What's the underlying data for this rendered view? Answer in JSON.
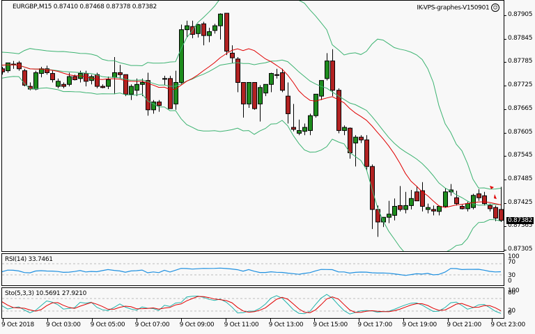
{
  "header": {
    "symbol_info": "EURGBP,M15  0.87410 0.87468 0.87378 0.87382",
    "expert_name": "IK-VPS-graphes-V150901",
    "expert_icon": "smiley-icon"
  },
  "price_axis": {
    "labels": [
      "0.87905",
      "0.87845",
      "0.87785",
      "0.87725",
      "0.87665",
      "0.87605",
      "0.87545",
      "0.87485",
      "0.87425",
      "0.87365",
      "0.87305"
    ],
    "current_price": "0.87382"
  },
  "rsi_panel": {
    "label": "RSI(14) 33.7461",
    "levels": [
      "100",
      "70",
      "30",
      "0"
    ]
  },
  "stoch_panel": {
    "label": "Sto(5,3,3) 10.5691 27.9210",
    "levels": [
      "100",
      "80",
      "20",
      "0"
    ]
  },
  "time_axis": {
    "labels": [
      "9 Oct 2018",
      "9 Oct 03:00",
      "9 Oct 05:00",
      "9 Oct 07:00",
      "9 Oct 09:00",
      "9 Oct 11:00",
      "9 Oct 13:00",
      "9 Oct 15:00",
      "9 Oct 17:00",
      "9 Oct 19:00",
      "9 Oct 21:00",
      "9 Oct 23:00"
    ]
  },
  "colors": {
    "bull": "#1e8c1e",
    "bear": "#b22222",
    "ma": "#e00000",
    "bands": "#3cb371",
    "rsi": "#1e90e0",
    "stoch_main": "#20b2aa",
    "stoch_signal": "#e00000",
    "background": "#f8f8f8"
  },
  "chart_data": {
    "type": "candlestick",
    "title": "EURGBP,M15",
    "ohlc_last": {
      "open": 0.8741,
      "high": 0.87468,
      "low": 0.87378,
      "close": 0.87382
    },
    "ylim": [
      0.8729,
      0.87945
    ],
    "x_labels": [
      "9 Oct 2018",
      "9 Oct 03:00",
      "9 Oct 05:00",
      "9 Oct 07:00",
      "9 Oct 09:00",
      "9 Oct 11:00",
      "9 Oct 13:00",
      "9 Oct 15:00",
      "9 Oct 17:00",
      "9 Oct 19:00",
      "9 Oct 21:00",
      "9 Oct 23:00"
    ],
    "candles": [
      [
        0.87775,
        0.8779,
        0.87765,
        0.8778
      ],
      [
        0.87785,
        0.8779,
        0.8776,
        0.87765
      ],
      [
        0.8777,
        0.8778,
        0.87765,
        0.87775
      ],
      [
        0.8777,
        0.87795,
        0.8776,
        0.8779
      ],
      [
        0.87795,
        0.8781,
        0.87785,
        0.87808
      ],
      [
        0.87808,
        0.87815,
        0.8777,
        0.87775
      ],
      [
        0.8777,
        0.87775,
        0.87755,
        0.87762
      ],
      [
        0.87765,
        0.87785,
        0.8776,
        0.87785
      ],
      [
        0.8778,
        0.8779,
        0.8777,
        0.87782
      ],
      [
        0.87785,
        0.8779,
        0.87765,
        0.8777
      ],
      [
        0.87765,
        0.8777,
        0.87725,
        0.87728
      ],
      [
        0.87725,
        0.87735,
        0.87715,
        0.87718
      ],
      [
        0.87718,
        0.87765,
        0.87715,
        0.8776
      ],
      [
        0.87758,
        0.87775,
        0.87748,
        0.8777
      ],
      [
        0.8777,
        0.87778,
        0.87755,
        0.8776
      ],
      [
        0.87758,
        0.87765,
        0.87735,
        0.87742
      ],
      [
        0.87725,
        0.87745,
        0.8772,
        0.87738
      ],
      [
        0.8773,
        0.87735,
        0.8772,
        0.87725
      ],
      [
        0.8773,
        0.8776,
        0.87725,
        0.8775
      ],
      [
        0.8775,
        0.87755,
        0.8774,
        0.87742
      ],
      [
        0.87745,
        0.87765,
        0.87735,
        0.87758
      ],
      [
        0.87758,
        0.87765,
        0.87725,
        0.87738
      ],
      [
        0.8774,
        0.87755,
        0.8773,
        0.8775
      ],
      [
        0.87755,
        0.8776,
        0.8772,
        0.87725
      ],
      [
        0.87725,
        0.8773,
        0.8772,
        0.87722
      ],
      [
        0.87725,
        0.8775,
        0.87718,
        0.87742
      ],
      [
        0.87748,
        0.878,
        0.87705,
        0.8776
      ],
      [
        0.8776,
        0.8778,
        0.87745,
        0.87755
      ],
      [
        0.87755,
        0.87755,
        0.877,
        0.87705
      ],
      [
        0.87705,
        0.8773,
        0.8769,
        0.87725
      ],
      [
        0.87715,
        0.87745,
        0.877,
        0.8773
      ],
      [
        0.8773,
        0.87745,
        0.877,
        0.87735
      ],
      [
        0.8774,
        0.8776,
        0.8765,
        0.87665
      ],
      [
        0.87665,
        0.8769,
        0.87655,
        0.87685
      ],
      [
        0.87685,
        0.8769,
        0.8766,
        0.87676
      ],
      [
        0.87745,
        0.87752,
        0.87728,
        0.87745
      ],
      [
        0.87745,
        0.87752,
        0.877,
        0.87668
      ],
      [
        0.8768,
        0.87765,
        0.87665,
        0.87735
      ],
      [
        0.87735,
        0.87883,
        0.8773,
        0.8787
      ],
      [
        0.8787,
        0.87893,
        0.8785,
        0.8788
      ],
      [
        0.87878,
        0.87893,
        0.87848,
        0.87858
      ],
      [
        0.8786,
        0.87885,
        0.8785,
        0.87883
      ],
      [
        0.87885,
        0.8789,
        0.8783,
        0.87855
      ],
      [
        0.87855,
        0.87875,
        0.87838,
        0.87865
      ],
      [
        0.87868,
        0.87885,
        0.8786,
        0.8788
      ],
      [
        0.8788,
        0.87912,
        0.87845,
        0.8791
      ],
      [
        0.87912,
        0.87912,
        0.87805,
        0.87815
      ],
      [
        0.8781,
        0.8783,
        0.87785,
        0.87798
      ],
      [
        0.87795,
        0.878,
        0.8771,
        0.87735
      ],
      [
        0.87735,
        0.87735,
        0.87645,
        0.8768
      ],
      [
        0.8768,
        0.87735,
        0.8767,
        0.87735
      ],
      [
        0.87735,
        0.87735,
        0.87665,
        0.87668
      ],
      [
        0.8768,
        0.87728,
        0.87635,
        0.87722
      ],
      [
        0.87708,
        0.8773,
        0.877,
        0.8773
      ],
      [
        0.8773,
        0.8776,
        0.8771,
        0.87758
      ],
      [
        0.87755,
        0.8777,
        0.87745,
        0.87753
      ],
      [
        0.8776,
        0.8777,
        0.8771,
        0.87715
      ],
      [
        0.877,
        0.87735,
        0.8763,
        0.87655
      ],
      [
        0.8762,
        0.8768,
        0.8761,
        0.87615
      ],
      [
        0.87605,
        0.8764,
        0.876,
        0.87612
      ],
      [
        0.8761,
        0.8763,
        0.876,
        0.8762
      ],
      [
        0.87612,
        0.87655,
        0.876,
        0.8765
      ],
      [
        0.8765,
        0.877,
        0.87645,
        0.87705
      ],
      [
        0.877,
        0.87735,
        0.8769,
        0.8774
      ],
      [
        0.87745,
        0.8781,
        0.8774,
        0.8779
      ],
      [
        0.8779,
        0.8782,
        0.877,
        0.87715
      ],
      [
        0.87715,
        0.8772,
        0.87605,
        0.87612
      ],
      [
        0.87612,
        0.87625,
        0.876,
        0.8762
      ],
      [
        0.87618,
        0.8762,
        0.8754,
        0.87555
      ],
      [
        0.8758,
        0.876,
        0.8752,
        0.87595
      ],
      [
        0.87595,
        0.876,
        0.8758,
        0.87588
      ],
      [
        0.87588,
        0.876,
        0.8751,
        0.8752
      ],
      [
        0.8752,
        0.87525,
        0.8736,
        0.8741
      ],
      [
        0.8741,
        0.8742,
        0.8734,
        0.87378
      ],
      [
        0.87378,
        0.8739,
        0.87365,
        0.8739
      ],
      [
        0.8739,
        0.87432,
        0.87375,
        0.87398
      ],
      [
        0.87395,
        0.87438,
        0.87382,
        0.87418
      ],
      [
        0.8742,
        0.8747,
        0.87405,
        0.8741
      ],
      [
        0.8741,
        0.87455,
        0.874,
        0.8742
      ],
      [
        0.8742,
        0.8746,
        0.8741,
        0.87438
      ],
      [
        0.87455,
        0.8747,
        0.87445,
        0.87432
      ],
      [
        0.87458,
        0.8748,
        0.87405,
        0.87418
      ],
      [
        0.8741,
        0.87425,
        0.874,
        0.87415
      ],
      [
        0.8741,
        0.8742,
        0.87395,
        0.87406
      ],
      [
        0.87405,
        0.8742,
        0.87395,
        0.87418
      ],
      [
        0.87418,
        0.87465,
        0.87415,
        0.87455
      ],
      [
        0.87455,
        0.87475,
        0.87445,
        0.8746
      ],
      [
        0.8744,
        0.87458,
        0.8742,
        0.87425
      ],
      [
        0.87418,
        0.87422,
        0.8741,
        0.87412
      ],
      [
        0.87412,
        0.8743,
        0.87405,
        0.87425
      ],
      [
        0.87415,
        0.8745,
        0.8741,
        0.87446
      ],
      [
        0.8745,
        0.87462,
        0.87432,
        0.8744
      ],
      [
        0.87445,
        0.87455,
        0.8742,
        0.87425
      ],
      [
        0.8742,
        0.87425,
        0.87405,
        0.87412
      ],
      [
        0.87415,
        0.8742,
        0.8738,
        0.87388
      ],
      [
        0.8741,
        0.87468,
        0.87378,
        0.87382
      ]
    ],
    "indicators": [
      "Moving Average (red)",
      "Bollinger Bands (green)",
      "RSI(14)",
      "Stochastic(5,3,3)"
    ],
    "rsi_value": 33.7461,
    "stoch_main": 10.5691,
    "stoch_signal": 27.921
  }
}
